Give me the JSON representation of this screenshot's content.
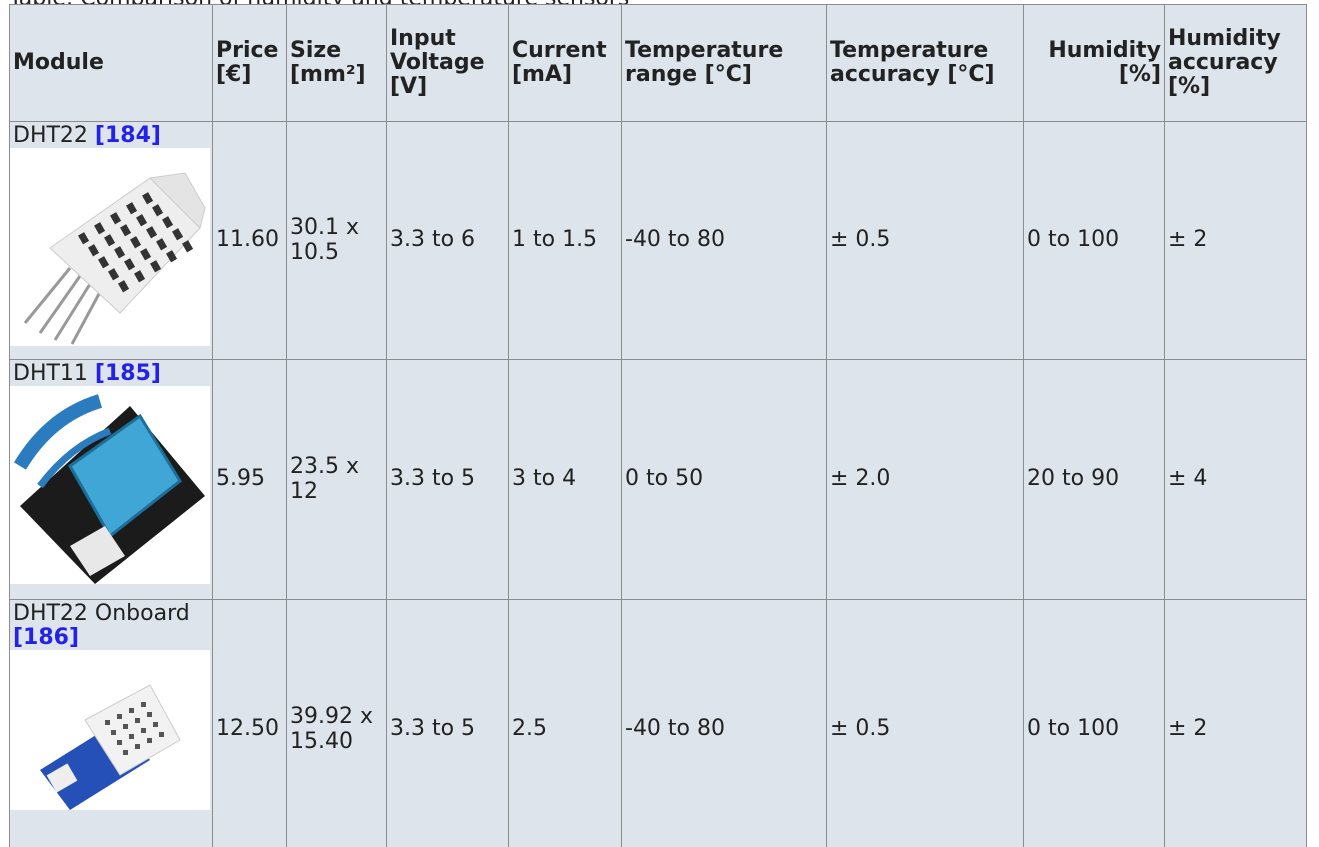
{
  "caption": "Table: Comparison of humidity and temperature sensors",
  "table": {
    "header": [
      "Module",
      "Price [€]",
      "Size [mm²]",
      "Input Voltage [V]",
      "Current [mA]",
      "Temperature range [°C]",
      "Temperature accuracy [°C]",
      "Humidity [%]",
      "Humidity accuracy [%]"
    ],
    "rows": [
      {
        "module": "DHT22",
        "ref": "[184]",
        "cells": [
          "11.60",
          "30.1 x 10.5",
          "3.3 to 6",
          "1 to 1.5",
          "-40 to 80",
          "± 0.5",
          "0 to 100",
          "± 2"
        ]
      },
      {
        "module": "DHT11",
        "ref": "[185]",
        "cells": [
          "5.95",
          "23.5 x 12",
          "3.3 to 5",
          "3 to 4",
          "0 to 50",
          "± 2.0",
          "20 to 90",
          "± 4"
        ]
      },
      {
        "module": "DHT22 Onboard",
        "ref": "[186]",
        "cells": [
          "12.50",
          "39.92 x 15.40",
          "3.3 to 5",
          "2.5",
          "-40 to 80",
          "± 0.5",
          "0 to 100",
          "± 2"
        ]
      }
    ]
  }
}
